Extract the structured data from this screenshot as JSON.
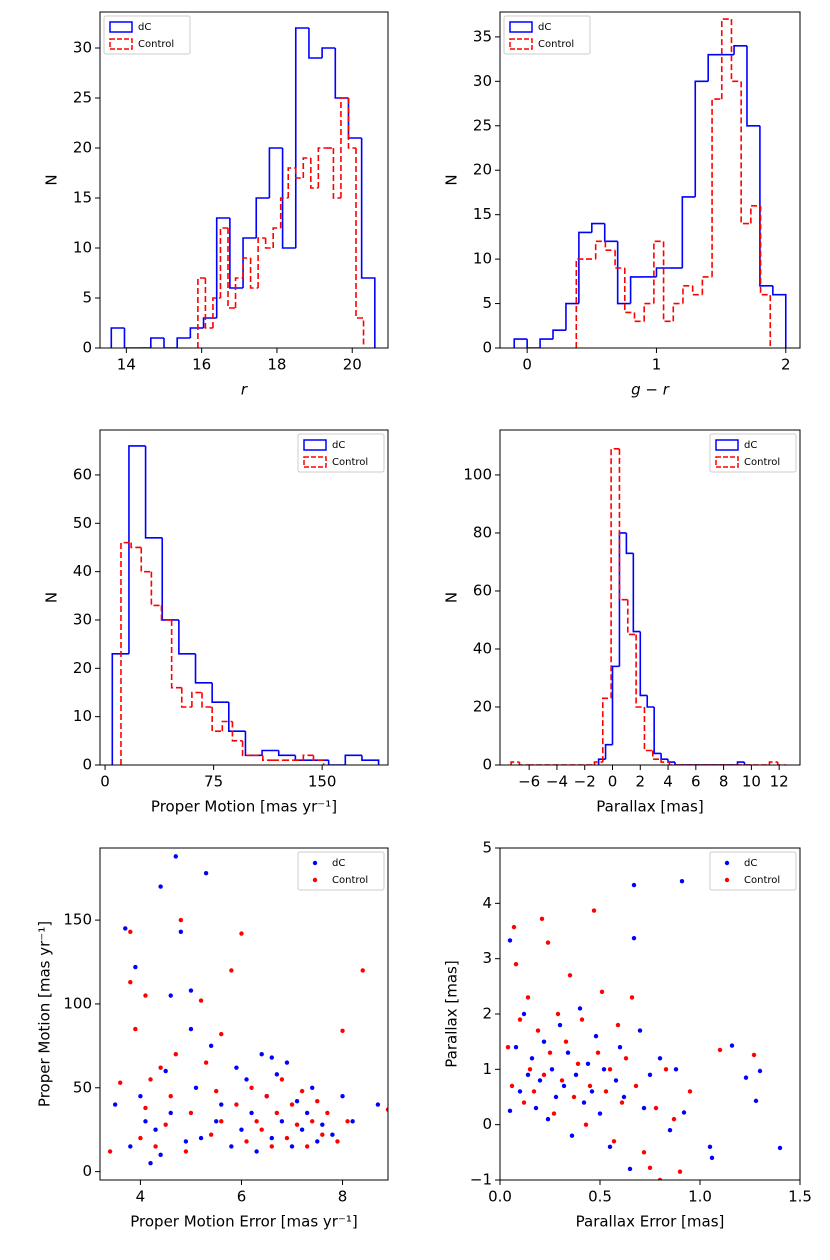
{
  "chart_data": [
    {
      "type": "histogram",
      "xlabel": "r",
      "ylabel": "N",
      "xlim": [
        13.3,
        20.95
      ],
      "ylim": [
        0,
        33.6
      ],
      "xticks": [
        14,
        16,
        18,
        20
      ],
      "yticks": [
        0,
        5,
        10,
        15,
        20,
        25,
        30
      ],
      "legend": "upper left",
      "series": [
        {
          "name": "dC",
          "color": "#0000ff",
          "linestyle": "solid",
          "bins": [
            13.6,
            13.95,
            14.3,
            14.65,
            15.0,
            15.35,
            15.7,
            16.05,
            16.4,
            16.75,
            17.1,
            17.45,
            17.8,
            18.15,
            18.5,
            18.85,
            19.2,
            19.55,
            19.9,
            20.25,
            20.6
          ],
          "values": [
            2,
            0,
            0,
            1,
            0,
            1,
            2,
            3,
            13,
            6,
            11,
            15,
            20,
            10,
            32,
            29,
            30,
            25,
            21,
            7
          ]
        },
        {
          "name": "Control",
          "color": "#ff0000",
          "linestyle": "dashed",
          "bins": [
            15.9,
            16.1,
            16.3,
            16.5,
            16.7,
            16.9,
            17.1,
            17.3,
            17.5,
            17.7,
            17.9,
            18.1,
            18.3,
            18.5,
            18.7,
            18.9,
            19.1,
            19.3,
            19.5,
            19.7,
            19.9,
            20.1,
            20.3
          ],
          "values": [
            7,
            2,
            5,
            12,
            4,
            7,
            9,
            6,
            11,
            10,
            12,
            15,
            18,
            17,
            19,
            16,
            20,
            20,
            15,
            25,
            20,
            3
          ]
        }
      ]
    },
    {
      "type": "histogram",
      "xlabel": "g − r",
      "ylabel": "N",
      "xlim": [
        -0.21,
        2.11
      ],
      "ylim": [
        0,
        37.8
      ],
      "xticks": [
        0,
        1,
        2
      ],
      "yticks": [
        0,
        5,
        10,
        15,
        20,
        25,
        30,
        35
      ],
      "legend": "upper left",
      "series": [
        {
          "name": "dC",
          "color": "#0000ff",
          "linestyle": "solid",
          "bins": [
            -0.1,
            0.0,
            0.1,
            0.2,
            0.3,
            0.4,
            0.5,
            0.6,
            0.7,
            0.8,
            0.9,
            1.0,
            1.1,
            1.2,
            1.3,
            1.4,
            1.5,
            1.6,
            1.7,
            1.8,
            1.9,
            2.0
          ],
          "values": [
            1,
            0,
            1,
            2,
            5,
            13,
            14,
            12,
            5,
            8,
            8,
            9,
            9,
            17,
            30,
            33,
            33,
            34,
            25,
            7,
            6
          ]
        },
        {
          "name": "Control",
          "color": "#ff0000",
          "linestyle": "dashed",
          "bins": [
            0.38,
            0.455,
            0.53,
            0.605,
            0.68,
            0.755,
            0.83,
            0.905,
            0.98,
            1.055,
            1.13,
            1.205,
            1.28,
            1.355,
            1.43,
            1.505,
            1.58,
            1.655,
            1.73,
            1.805,
            1.88
          ],
          "values": [
            10,
            10,
            12,
            11,
            9,
            4,
            3,
            5,
            12,
            3,
            5,
            7,
            6,
            8,
            28,
            37,
            30,
            14,
            16,
            6
          ]
        }
      ]
    },
    {
      "type": "histogram",
      "xlabel": "Proper Motion [mas yr⁻¹]",
      "ylabel": "N",
      "xlim": [
        -3.5,
        195.5
      ],
      "ylim": [
        0,
        69.3
      ],
      "xticks": [
        0,
        75,
        150
      ],
      "yticks": [
        0,
        10,
        20,
        30,
        40,
        50,
        60
      ],
      "legend": "upper right",
      "series": [
        {
          "name": "dC",
          "color": "#0000ff",
          "linestyle": "solid",
          "bins": [
            5,
            16.5,
            28,
            39.5,
            51,
            62.5,
            74,
            85.5,
            97,
            108.5,
            120,
            131.5,
            143,
            154.5,
            166,
            177.5,
            189
          ],
          "values": [
            23,
            66,
            47,
            30,
            23,
            17,
            13,
            7,
            2,
            3,
            2,
            1,
            1,
            0,
            2,
            1
          ]
        },
        {
          "name": "Control",
          "color": "#ff0000",
          "linestyle": "dashed",
          "bins": [
            11,
            18,
            25,
            32,
            39,
            46,
            53,
            60,
            67,
            74,
            81,
            88,
            95,
            102,
            109,
            116,
            123,
            130,
            137,
            144,
            151
          ],
          "values": [
            46,
            45,
            40,
            33,
            30,
            16,
            12,
            15,
            12,
            7,
            9,
            5,
            2,
            2,
            1,
            1,
            1,
            1,
            2,
            1
          ]
        }
      ]
    },
    {
      "type": "histogram",
      "xlabel": "Parallax [mas]",
      "ylabel": "N",
      "xlim": [
        -8.1,
        13.5
      ],
      "ylim": [
        0,
        115.5
      ],
      "xticks": [
        {
          "value": -6,
          "label": "−6"
        },
        {
          "value": -4,
          "label": "−4"
        },
        {
          "value": -2,
          "label": "−2"
        },
        0,
        2,
        4,
        6,
        8,
        10,
        12
      ],
      "yticks": [
        0,
        20,
        40,
        60,
        80,
        100
      ],
      "legend": "upper right",
      "series": [
        {
          "name": "dC",
          "color": "#0000ff",
          "linestyle": "solid",
          "bins": [
            -1,
            -0.5,
            0,
            0.5,
            1,
            1.5,
            2,
            2.5,
            3,
            3.5,
            4,
            4.5,
            5,
            5.5,
            6,
            6.5,
            7,
            7.5,
            8,
            8.5,
            9,
            9.5,
            10
          ],
          "values": [
            2,
            7,
            34,
            80,
            73,
            46,
            24,
            20,
            4,
            2,
            1,
            0,
            0,
            0,
            0,
            0,
            0,
            0,
            0,
            0,
            1,
            0
          ]
        },
        {
          "name": "Control",
          "color": "#ff0000",
          "linestyle": "dashed",
          "bins": [
            -7.3,
            -6.7,
            -6.1,
            -5.5,
            -4.9,
            -4.3,
            -3.7,
            -3.1,
            -2.5,
            -1.9,
            -1.3,
            -0.7,
            -0.1,
            0.5,
            1.1,
            1.7,
            2.3,
            2.9,
            3.5,
            4.1,
            4.7,
            5.3,
            5.9,
            6.5,
            7.1,
            7.7,
            8.3,
            8.9,
            9.5,
            10.1,
            10.7,
            11.3,
            11.9,
            12.5
          ],
          "values": [
            1,
            0,
            0,
            0,
            0,
            0,
            0,
            0,
            0,
            0,
            1,
            23,
            109,
            57,
            45,
            20,
            5,
            2,
            1,
            0,
            0,
            0,
            0,
            0,
            0,
            0,
            0,
            0,
            0,
            0,
            0,
            1,
            0
          ]
        }
      ]
    },
    {
      "type": "scatter",
      "xlabel": "Proper Motion Error [mas yr⁻¹]",
      "ylabel": "Proper Motion [mas yr⁻¹]",
      "xlim": [
        3.2,
        8.9
      ],
      "ylim": [
        -5,
        193
      ],
      "xticks": [
        4,
        6,
        8
      ],
      "yticks": [
        0,
        50,
        100,
        150
      ],
      "legend": "upper right",
      "series": [
        {
          "name": "dC",
          "color": "#0000ff",
          "x": [
            3.5,
            3.7,
            3.8,
            3.9,
            4.0,
            4.1,
            4.2,
            4.3,
            4.4,
            4.5,
            4.6,
            4.7,
            4.8,
            4.9,
            5.0,
            5.1,
            5.2,
            5.3,
            5.4,
            5.5,
            5.6,
            5.8,
            5.9,
            6.0,
            6.1,
            6.2,
            6.3,
            6.4,
            6.5,
            6.6,
            6.7,
            6.8,
            6.9,
            7.0,
            7.1,
            7.2,
            7.3,
            7.4,
            7.5,
            7.6,
            7.8,
            8.0,
            8.2,
            8.7,
            4.4,
            5.0,
            4.6,
            6.6
          ],
          "values": [
            40,
            145,
            15,
            122,
            45,
            30,
            5,
            25,
            170,
            60,
            35,
            188,
            143,
            18,
            108,
            50,
            20,
            178,
            75,
            30,
            40,
            15,
            62,
            25,
            55,
            35,
            12,
            70,
            45,
            20,
            58,
            30,
            65,
            15,
            42,
            25,
            35,
            50,
            18,
            28,
            22,
            45,
            30,
            40,
            10,
            85,
            105,
            68
          ]
        },
        {
          "name": "Control",
          "color": "#ff0000",
          "x": [
            3.4,
            3.6,
            3.8,
            3.8,
            3.9,
            4.0,
            4.1,
            4.2,
            4.3,
            4.4,
            4.5,
            4.6,
            4.7,
            4.8,
            4.9,
            5.0,
            5.2,
            5.3,
            5.4,
            5.5,
            5.6,
            5.8,
            5.9,
            6.0,
            6.1,
            6.2,
            6.3,
            6.4,
            6.5,
            6.6,
            6.7,
            6.8,
            6.9,
            7.0,
            7.1,
            7.2,
            7.3,
            7.4,
            7.5,
            7.6,
            7.7,
            7.9,
            8.0,
            8.1,
            8.4,
            8.9,
            4.1,
            5.6
          ],
          "values": [
            12,
            53,
            143,
            113,
            85,
            20,
            38,
            55,
            15,
            62,
            28,
            45,
            70,
            150,
            12,
            35,
            102,
            65,
            22,
            48,
            30,
            120,
            40,
            142,
            18,
            50,
            30,
            25,
            45,
            15,
            35,
            55,
            20,
            40,
            28,
            48,
            15,
            30,
            42,
            22,
            35,
            18,
            84,
            30,
            120,
            37,
            105,
            82
          ]
        }
      ]
    },
    {
      "type": "scatter",
      "xlabel": "Parallax Error [mas]",
      "ylabel": "Parallax [mas]",
      "xlim": [
        0,
        1.5
      ],
      "ylim": [
        -1,
        5
      ],
      "xticks": [
        {
          "value": 0,
          "label": "0.0"
        },
        0.5,
        {
          "value": 1,
          "label": "1.0"
        },
        1.5
      ],
      "yticks": [
        {
          "value": -1,
          "label": "−1"
        },
        0,
        1,
        2,
        3,
        4,
        5
      ],
      "legend": "upper right",
      "series": [
        {
          "name": "dC",
          "color": "#0000ff",
          "x": [
            0.05,
            0.05,
            0.08,
            0.1,
            0.12,
            0.14,
            0.16,
            0.18,
            0.2,
            0.22,
            0.24,
            0.26,
            0.28,
            0.3,
            0.32,
            0.34,
            0.36,
            0.38,
            0.4,
            0.42,
            0.44,
            0.46,
            0.48,
            0.5,
            0.52,
            0.55,
            0.58,
            0.6,
            0.62,
            0.65,
            0.67,
            0.67,
            0.7,
            0.72,
            0.75,
            0.8,
            0.85,
            0.88,
            0.91,
            0.92,
            1.05,
            1.06,
            1.16,
            1.23,
            1.28,
            1.3,
            1.4
          ],
          "values": [
            3.33,
            0.25,
            1.4,
            0.6,
            2.0,
            0.9,
            1.2,
            0.3,
            0.8,
            1.5,
            0.1,
            1.0,
            0.5,
            1.8,
            0.7,
            1.3,
            -0.2,
            0.9,
            2.1,
            0.4,
            1.1,
            0.6,
            1.6,
            0.2,
            1.0,
            -0.4,
            0.8,
            1.4,
            0.5,
            -0.8,
            4.33,
            3.37,
            1.7,
            0.3,
            0.9,
            1.2,
            -0.1,
            1.0,
            4.4,
            0.22,
            -0.4,
            -0.6,
            1.43,
            0.85,
            0.43,
            0.97,
            -0.42
          ]
        },
        {
          "name": "Control",
          "color": "#ff0000",
          "x": [
            0.04,
            0.06,
            0.07,
            0.08,
            0.1,
            0.12,
            0.14,
            0.15,
            0.17,
            0.19,
            0.21,
            0.22,
            0.24,
            0.25,
            0.27,
            0.29,
            0.31,
            0.33,
            0.35,
            0.37,
            0.39,
            0.41,
            0.43,
            0.45,
            0.47,
            0.49,
            0.51,
            0.53,
            0.55,
            0.57,
            0.59,
            0.61,
            0.63,
            0.66,
            0.68,
            0.72,
            0.75,
            0.78,
            0.8,
            0.83,
            0.87,
            0.9,
            0.95,
            1.1,
            1.27
          ],
          "values": [
            1.4,
            0.7,
            3.57,
            2.9,
            1.9,
            0.4,
            2.3,
            1.0,
            0.6,
            1.7,
            3.72,
            0.9,
            3.29,
            1.3,
            0.2,
            2.0,
            0.8,
            1.5,
            2.7,
            0.5,
            1.1,
            1.9,
            0.0,
            0.7,
            3.87,
            1.3,
            2.4,
            0.6,
            1.0,
            -0.3,
            1.8,
            0.4,
            1.2,
            2.3,
            0.7,
            -0.5,
            -0.78,
            0.3,
            -1.0,
            1.0,
            0.1,
            -0.85,
            0.6,
            1.35,
            1.26
          ]
        }
      ]
    }
  ]
}
